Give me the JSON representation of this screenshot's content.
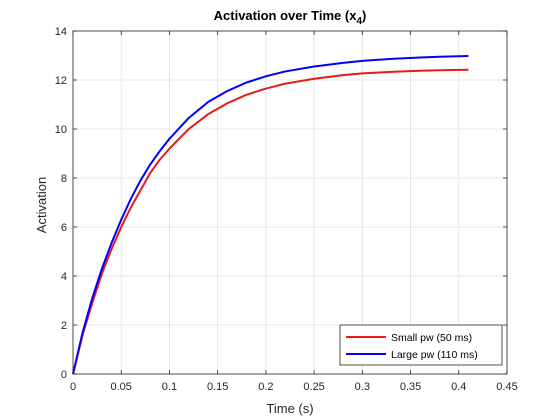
{
  "chart_data": {
    "type": "line",
    "title": "Activation over Time (x",
    "title_subscript": "4",
    "title_close": ")",
    "xlabel": "Time (s)",
    "ylabel": "Activation",
    "xlim": [
      0,
      0.45
    ],
    "ylim": [
      0,
      14
    ],
    "xticks": [
      0,
      0.05,
      0.1,
      0.15,
      0.2,
      0.25,
      0.3,
      0.35,
      0.4,
      0.45
    ],
    "xtick_labels": [
      "0",
      "0.05",
      "0.1",
      "0.15",
      "0.2",
      "0.25",
      "0.3",
      "0.35",
      "0.4",
      "0.45"
    ],
    "yticks": [
      0,
      2,
      4,
      6,
      8,
      10,
      12,
      14
    ],
    "ytick_labels": [
      "0",
      "2",
      "4",
      "6",
      "8",
      "10",
      "12",
      "14"
    ],
    "grid": true,
    "legend_position": "bottom-right",
    "series": [
      {
        "name": "Small pw (50 ms)",
        "color": "#e41a1c",
        "x": [
          0,
          0.01,
          0.02,
          0.03,
          0.04,
          0.05,
          0.06,
          0.07,
          0.08,
          0.09,
          0.1,
          0.12,
          0.14,
          0.16,
          0.18,
          0.2,
          0.22,
          0.25,
          0.28,
          0.3,
          0.33,
          0.36,
          0.38,
          0.41
        ],
        "y": [
          0,
          1.6,
          2.9,
          4.1,
          5.1,
          6.0,
          6.8,
          7.5,
          8.2,
          8.75,
          9.2,
          10.0,
          10.6,
          11.05,
          11.4,
          11.65,
          11.85,
          12.05,
          12.2,
          12.27,
          12.33,
          12.38,
          12.4,
          12.42
        ]
      },
      {
        "name": "Large pw (110 ms)",
        "color": "#0000ff",
        "x": [
          0,
          0.01,
          0.02,
          0.03,
          0.04,
          0.05,
          0.06,
          0.07,
          0.08,
          0.09,
          0.1,
          0.12,
          0.14,
          0.16,
          0.18,
          0.2,
          0.22,
          0.25,
          0.28,
          0.3,
          0.33,
          0.36,
          0.38,
          0.41
        ],
        "y": [
          0,
          1.7,
          3.1,
          4.3,
          5.35,
          6.3,
          7.15,
          7.9,
          8.55,
          9.1,
          9.6,
          10.45,
          11.1,
          11.55,
          11.9,
          12.15,
          12.35,
          12.55,
          12.7,
          12.78,
          12.86,
          12.92,
          12.95,
          12.98
        ]
      }
    ]
  }
}
